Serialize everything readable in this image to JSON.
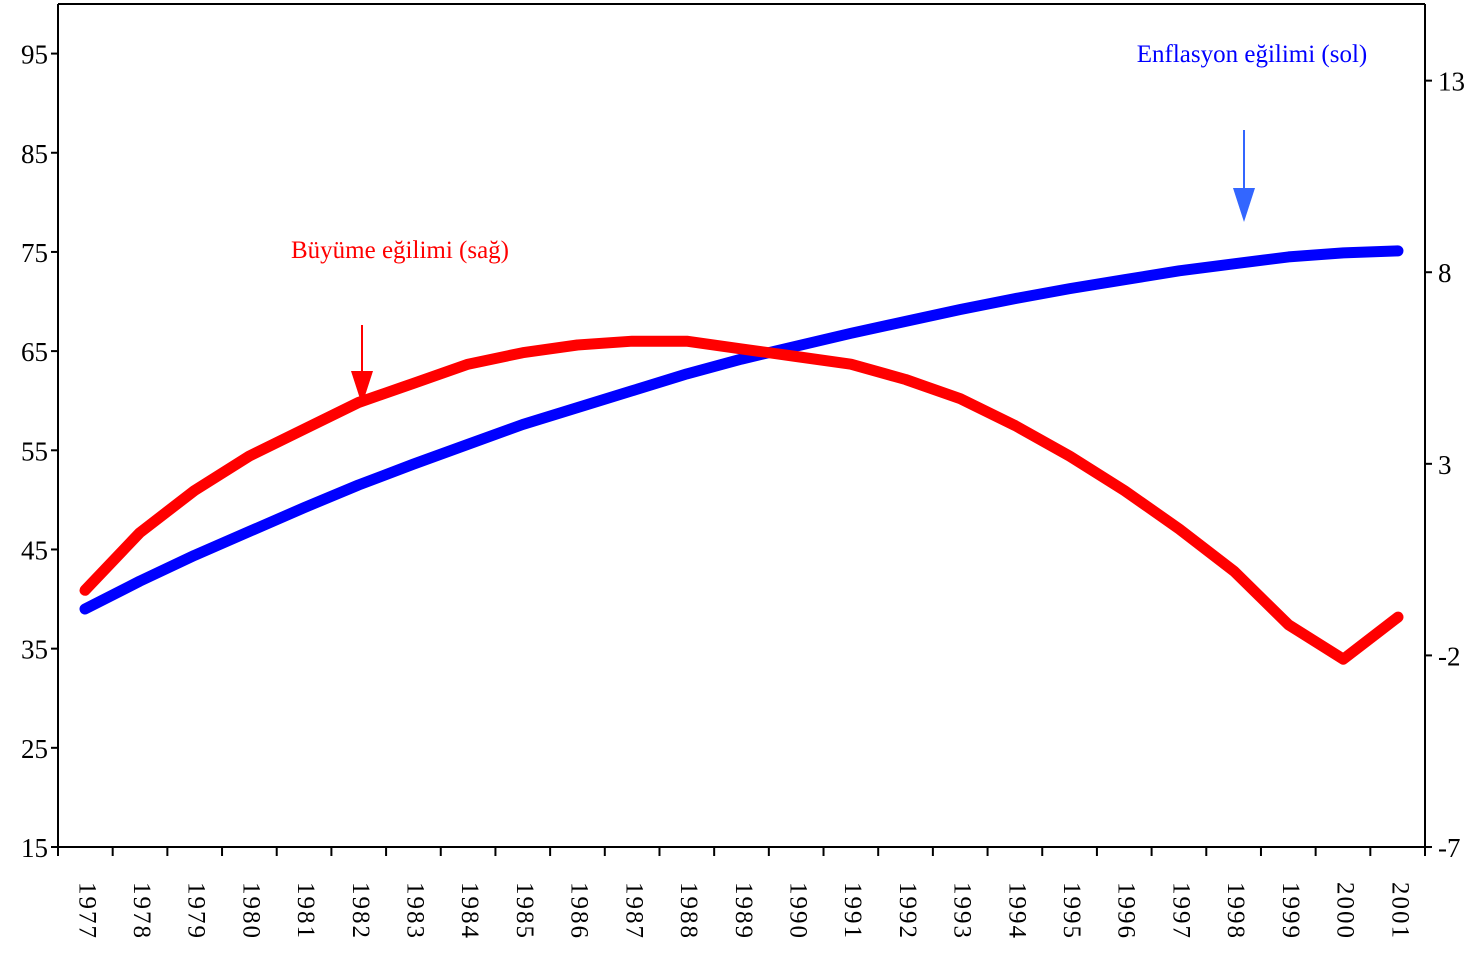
{
  "chart_data": {
    "type": "line",
    "title": "",
    "xlabel": "",
    "categories": [
      "1977",
      "1978",
      "1979",
      "1980",
      "1981",
      "1982",
      "1983",
      "1984",
      "1985",
      "1986",
      "1987",
      "1988",
      "1989",
      "1990",
      "1991",
      "1992",
      "1993",
      "1994",
      "1995",
      "1996",
      "1997",
      "1998",
      "1999",
      "2000",
      "2001"
    ],
    "y_left": {
      "ylim": [
        15,
        100
      ],
      "ticks": [
        "15",
        "25",
        "35",
        "45",
        "55",
        "65",
        "75",
        "85",
        "95"
      ]
    },
    "y_right": {
      "ylim": [
        -7,
        15
      ],
      "ticks": [
        "-7",
        "-2",
        "3",
        "8",
        "13"
      ]
    },
    "grid": false,
    "series": [
      {
        "name": "Enflasyon eğilimi (sol)",
        "axis": "left",
        "color": "#0000ff",
        "values": [
          39.0,
          41.8,
          44.4,
          46.8,
          49.2,
          51.5,
          53.6,
          55.6,
          57.6,
          59.3,
          61.0,
          62.7,
          64.2,
          65.5,
          66.8,
          68.0,
          69.2,
          70.3,
          71.3,
          72.2,
          73.1,
          73.8,
          74.5,
          74.9,
          75.1
        ]
      },
      {
        "name": "Büyüme eğilimi (sağ)",
        "axis": "right",
        "color": "#ff0000",
        "values": [
          -0.3,
          1.2,
          2.3,
          3.2,
          3.9,
          4.6,
          5.1,
          5.6,
          5.9,
          6.1,
          6.2,
          6.2,
          6.0,
          5.8,
          5.6,
          5.2,
          4.7,
          4.0,
          3.2,
          2.3,
          1.3,
          0.2,
          -1.2,
          -2.1,
          -1.0
        ]
      }
    ],
    "annotations": [
      {
        "text": "Büyüme eğilimi (sağ)",
        "color": "#ff0000",
        "points_to": "1982"
      },
      {
        "text": "Enflasyon eğilimi (sol)",
        "color": "#0000ff",
        "points_to": "1998"
      }
    ]
  }
}
